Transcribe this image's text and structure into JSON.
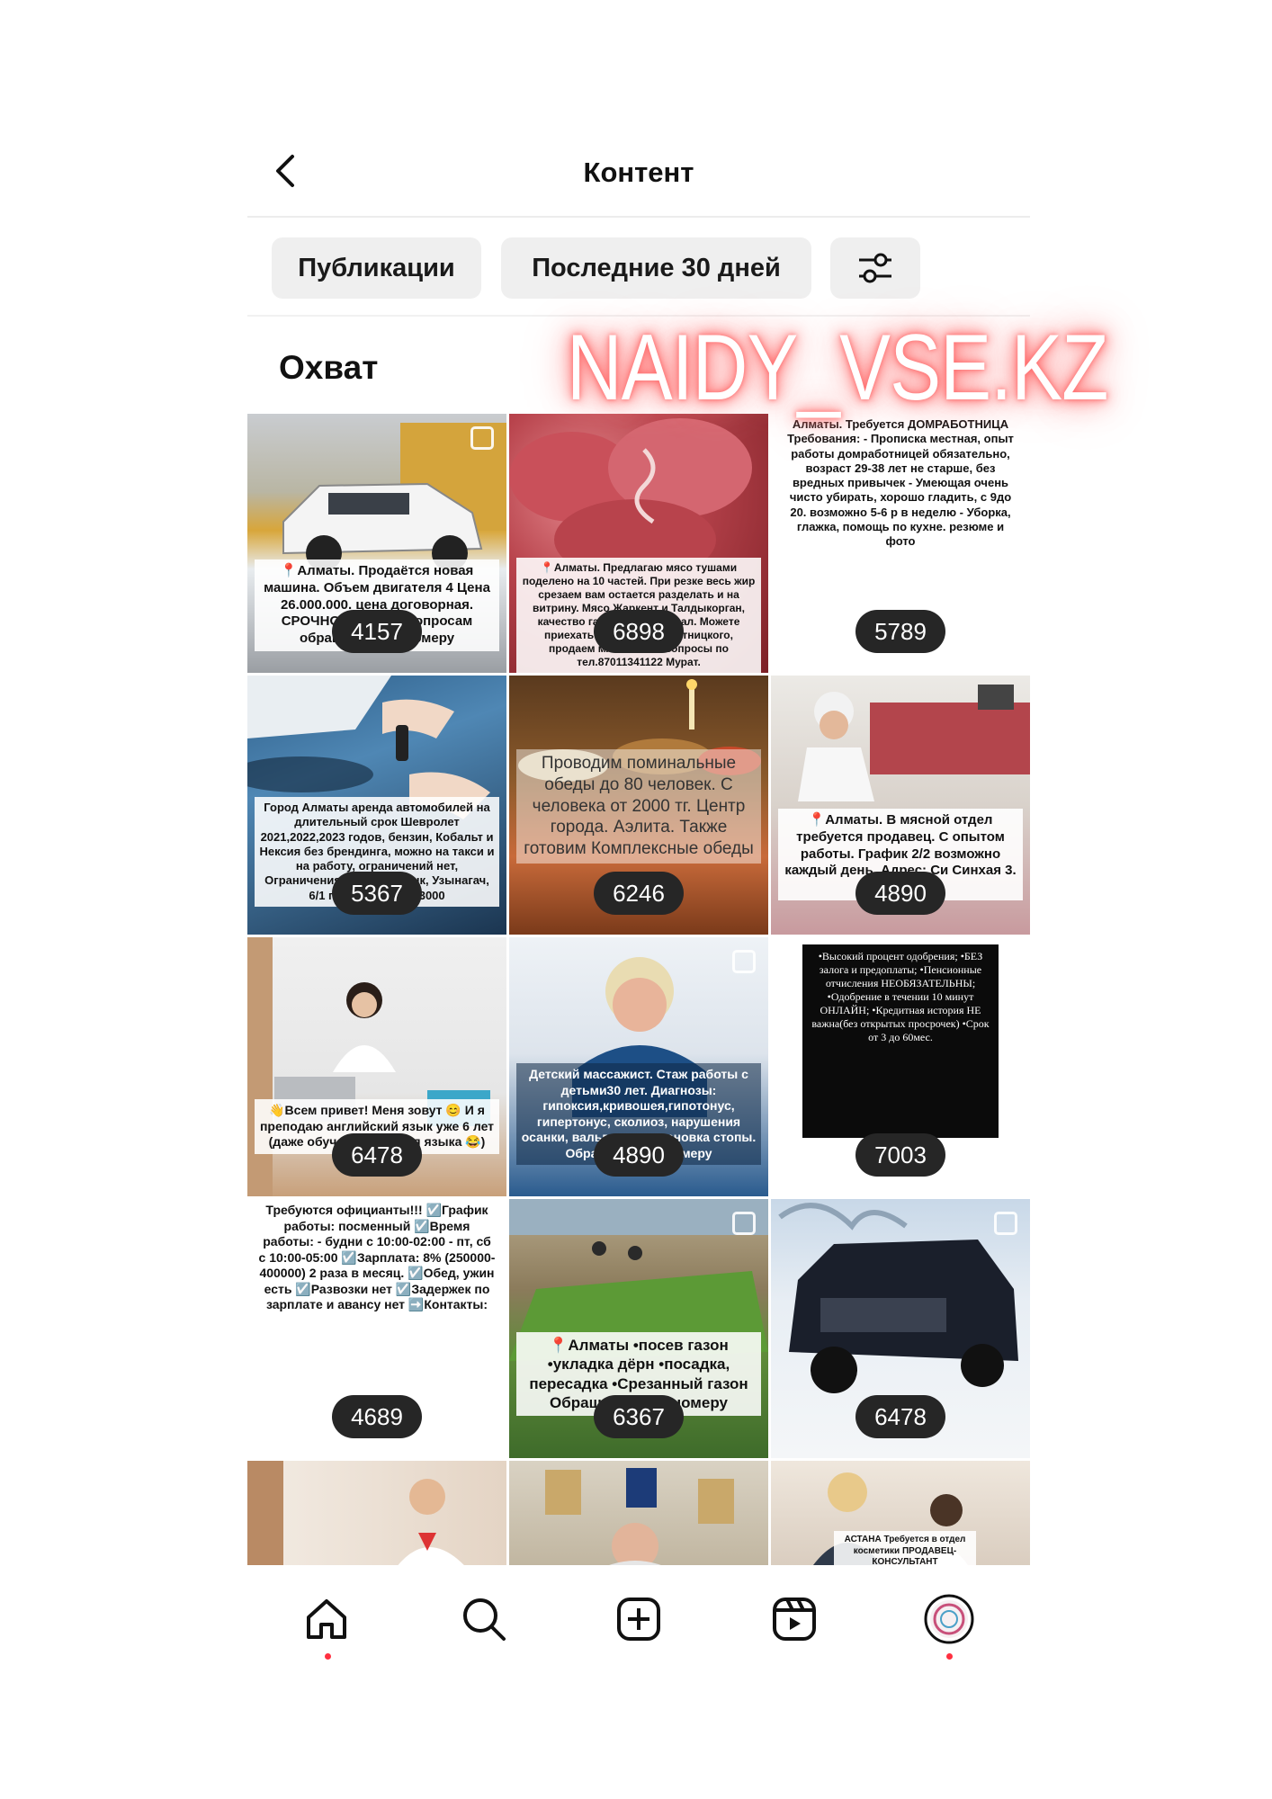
{
  "header": {
    "title": "Контент"
  },
  "filters": {
    "type_label": "Публикации",
    "period_label": "Последние 30 дней"
  },
  "section": {
    "title": "Охват"
  },
  "watermark": "NAIDY_VSE.KZ",
  "posts": [
    {
      "reach": "4157",
      "caption": "📍Алматы. Продаётся новая машина. Объем двигателя 4 Цена 26.000.000. цена договорная. СРОЧНО! По всем вопросам обращаться по номеру"
    },
    {
      "reach": "6898",
      "caption": "📍Алматы. Предлагаю мясо тушами поделено на 10 частей. При резке весь жир срезаем вам остается разделать и на витрину. Мясо Жаркент и Талдыкорган, качество гарантируем, халал. Можете приехать в магазин ул.Пятницкого, продаем мякоть. Все вопросы по тел.87011341122 Мурат."
    },
    {
      "reach": "5789",
      "caption": "Алматы. Требуется ДОМРАБОТНИЦА Требования: - Прописка местная, опыт работы домработницей обязательно, возраст 29-38 лет не старше, без вредных привычек - Умеющая очень чисто убирать, хорошо гладить, с 9до 20. возможно 5-6 р в неделю - Уборка, глажка, помощь по кухне. резюме и фото"
    },
    {
      "reach": "5367",
      "caption": "Город Алматы аренда автомобилей на длительный срок Шевролет 2021,2022,2023 годов, бензин, Кобальт и Нексия без брендинга, можно на такси и на работу, ограничений нет, Ограничения: Китай, Иссык, Узынагач, 6/1 график, 12000/13000"
    },
    {
      "reach": "6246",
      "caption": "Проводим поминальные обеды до 80 человек. С человека от 2000 тг. Центр города. Аэлита. Также готовим Комплексные обеды"
    },
    {
      "reach": "4890",
      "caption": "📍Алматы. В мясной отдел требуется продавец. С опытом работы. График 2/2 возможно каждый день. Адрес: Си Синхая 3. З/п 10000"
    },
    {
      "reach": "6478",
      "caption": "👋Всем привет! Меня зовут 😊 И я преподаю английский язык уже 6 лет (даже обучала носителя языка 😂)"
    },
    {
      "reach": "4890",
      "caption": "Детский массажист. Стаж работы с детьми30 лет. Диагнозы: гипоксия,кривошея,гипотонус, гипертонус, сколиоз, нарушения осанки, вальгусная установка стопы. Обращаться по номеру"
    },
    {
      "reach": "7003",
      "caption": "•Высокий процент одобрения; •БЕЗ залога и предоплаты; •Пенсионные отчисления НЕОБЯЗАТЕЛЬНЫ; •Одобрение в течении 10 минут ОНЛАЙН; •Кредитная история НЕ важна(без открытых просрочек) •Срок от 3 до 60мес."
    },
    {
      "reach": "4689",
      "caption": "Требуются официанты!!! ☑️График работы: посменный ☑️Время работы: - будни с 10:00-02:00 - пт, сб с 10:00-05:00 ☑️Зарплата: 8% (250000-400000) 2 раза в месяц. ☑️Обед, ужин есть ☑️Развозки нет ☑️Задержек по зарплате и авансу нет ➡️Контакты:"
    },
    {
      "reach": "6367",
      "caption": "📍Алматы •посев газон •укладка дёрн •посадка, пересадка •Срезанный газон Обращаться по номеру"
    },
    {
      "reach": "6478",
      "caption": ""
    },
    {
      "reach": "",
      "caption": ""
    },
    {
      "reach": "",
      "caption": ""
    },
    {
      "reach": "",
      "caption": "АСТАНА Требуется в отдел косметики ПРОДАВЕЦ-КОНСУЛЬТАНТ"
    }
  ],
  "nav": [
    "home-icon",
    "search-icon",
    "create-icon",
    "reels-icon",
    "profile-avatar"
  ],
  "colors": {
    "notification_dot": "#ff3040",
    "badge_bg": "#262626",
    "chip_bg": "#efefef",
    "watermark_glow": "#ff5a5a"
  }
}
